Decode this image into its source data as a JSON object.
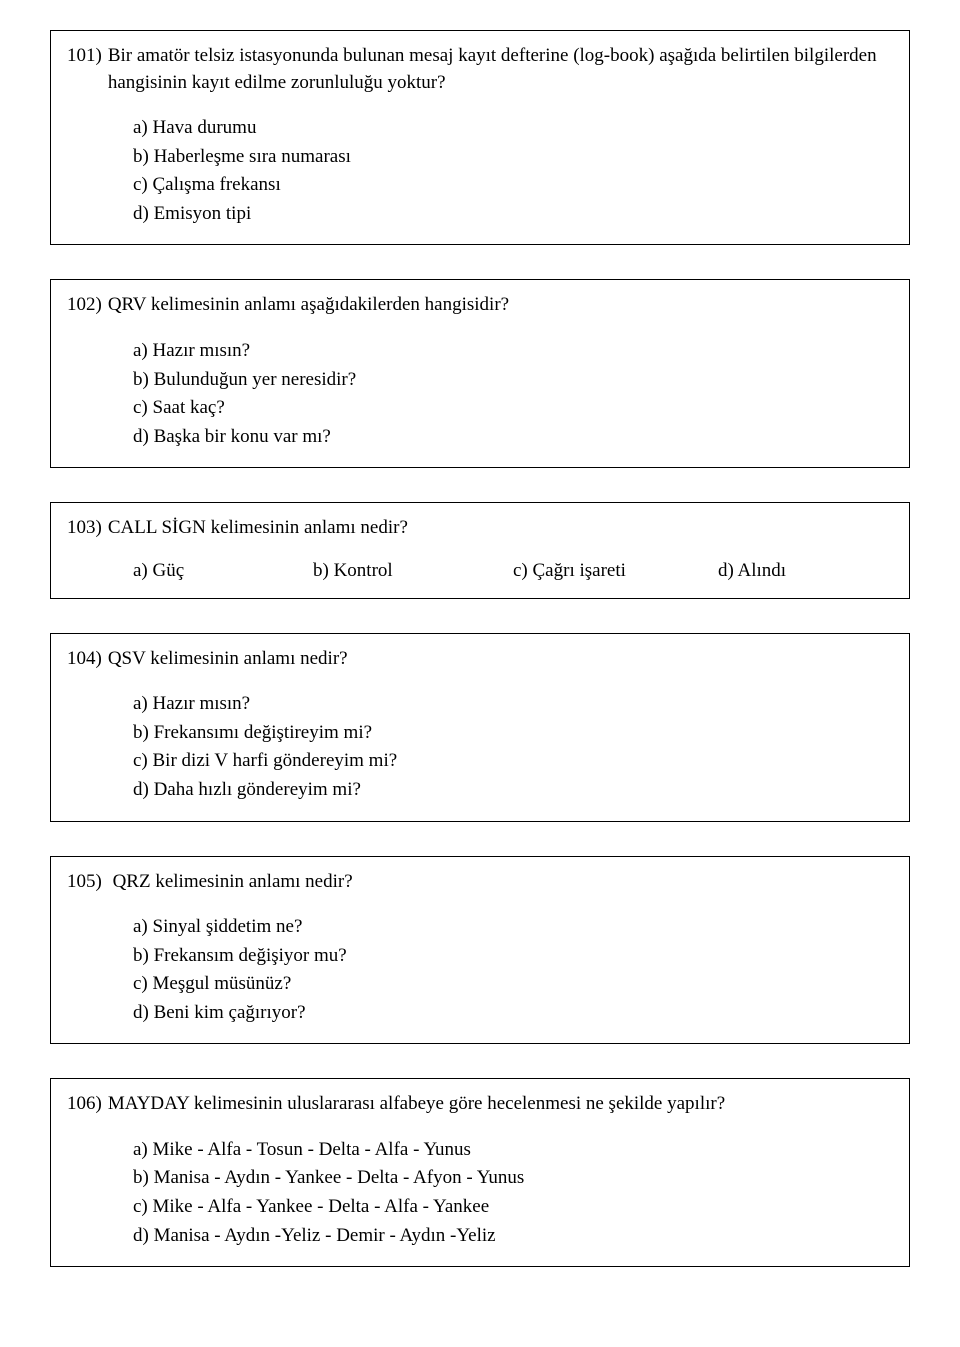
{
  "questions": [
    {
      "number": "101)",
      "text": "Bir amatör telsiz istasyonunda bulunan mesaj kayıt defterine (log-book) aşağıda belirtilen bilgilerden hangisinin kayıt edilme zorunluluğu yoktur?",
      "layout": "vertical",
      "options": [
        "a) Hava durumu",
        "b) Haberleşme sıra numarası",
        "c) Çalışma frekansı",
        "d) Emisyon tipi"
      ]
    },
    {
      "number": "102)",
      "text": "QRV kelimesinin anlamı aşağıdakilerden hangisidir?",
      "layout": "vertical",
      "options": [
        "a) Hazır mısın?",
        "b) Bulunduğun yer neresidir?",
        "c) Saat kaç?",
        "d) Başka bir konu var mı?"
      ]
    },
    {
      "number": "103)",
      "text": "CALL SİGN kelimesinin anlamı nedir?",
      "layout": "horizontal",
      "options": [
        "a) Güç",
        "b) Kontrol",
        "c) Çağrı işareti",
        "d) Alındı"
      ]
    },
    {
      "number": "104)",
      "text": "QSV kelimesinin anlamı nedir?",
      "layout": "vertical",
      "options": [
        "a) Hazır mısın?",
        "b) Frekansımı değiştireyim mi?",
        "c) Bir dizi V harfi göndereyim mi?",
        "d) Daha hızlı göndereyim mi?"
      ]
    },
    {
      "number": "105)",
      "text": "QRZ kelimesinin anlamı nedir?",
      "layout": "vertical",
      "options": [
        "a) Sinyal şiddetim ne?",
        "b) Frekansım değişiyor mu?",
        "c) Meşgul müsünüz?",
        "d) Beni kim çağırıyor?"
      ]
    },
    {
      "number": "106)",
      "text": "MAYDAY kelimesinin uluslararası alfabeye göre hecelenmesi ne şekilde yapılır?",
      "layout": "vertical",
      "options": [
        "a) Mike - Alfa - Tosun - Delta - Alfa - Yunus",
        "b) Manisa - Aydın - Yankee - Delta - Afyon - Yunus",
        "c) Mike - Alfa - Yankee - Delta - Alfa - Yankee",
        "d) Manisa - Aydın -Yeliz - Demir - Aydın -Yeliz"
      ]
    }
  ]
}
